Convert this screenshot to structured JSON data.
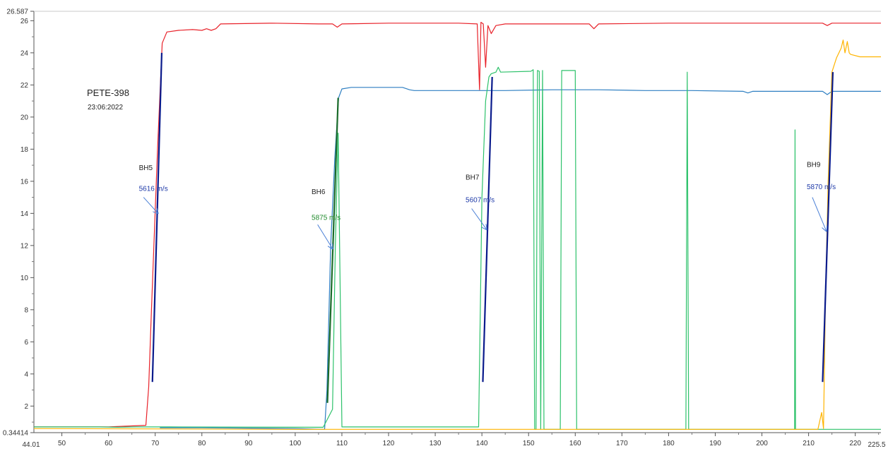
{
  "chart_data": {
    "type": "line",
    "title": "PETE-398",
    "subtitle": "23:06:2022",
    "xlim": [
      44.01,
      225.5
    ],
    "ylim": [
      0.34414,
      26.587
    ],
    "xticks": [
      50,
      60,
      70,
      80,
      90,
      100,
      110,
      120,
      130,
      140,
      150,
      160,
      170,
      180,
      190,
      200,
      210,
      220
    ],
    "x_edge_labels": [
      "44.01",
      "225.5"
    ],
    "yticks": [
      2,
      4,
      6,
      8,
      10,
      12,
      14,
      16,
      18,
      20,
      22,
      24,
      26
    ],
    "y_edge_labels": [
      "0.34414",
      "26.587"
    ],
    "grid": false,
    "series": [
      {
        "color": "#e8222a",
        "points": [
          [
            44.01,
            0.7
          ],
          [
            60,
            0.7
          ],
          [
            68,
            0.8
          ],
          [
            68.6,
            3.2
          ],
          [
            69.2,
            8
          ],
          [
            70.5,
            18
          ],
          [
            71.5,
            24.6
          ],
          [
            72.5,
            25.3
          ],
          [
            75,
            25.4
          ],
          [
            78,
            25.45
          ],
          [
            80,
            25.4
          ],
          [
            81,
            25.5
          ],
          [
            82,
            25.4
          ],
          [
            83,
            25.5
          ],
          [
            84,
            25.8
          ],
          [
            95,
            25.85
          ],
          [
            105,
            25.8
          ],
          [
            108,
            25.8
          ],
          [
            109,
            25.6
          ],
          [
            110,
            25.8
          ],
          [
            120,
            25.85
          ],
          [
            135,
            25.85
          ],
          [
            139,
            25.8
          ],
          [
            139.5,
            21.7
          ],
          [
            139.8,
            25.9
          ],
          [
            140.3,
            25.8
          ],
          [
            140.8,
            23.1
          ],
          [
            141.3,
            25.7
          ],
          [
            142,
            25.2
          ],
          [
            143,
            25.7
          ],
          [
            145,
            25.8
          ],
          [
            160,
            25.8
          ],
          [
            163,
            25.8
          ],
          [
            164,
            25.5
          ],
          [
            165,
            25.8
          ],
          [
            180,
            25.85
          ],
          [
            200,
            25.85
          ],
          [
            213,
            25.85
          ],
          [
            214,
            25.7
          ],
          [
            215,
            25.85
          ],
          [
            225.5,
            25.85
          ]
        ]
      },
      {
        "color": "#2e7fc2",
        "points": [
          [
            71,
            0.65
          ],
          [
            80,
            0.65
          ],
          [
            100,
            0.6
          ],
          [
            106.3,
            0.55
          ],
          [
            106.8,
            3
          ],
          [
            107.6,
            12
          ],
          [
            108.5,
            17.5
          ],
          [
            109.3,
            21.2
          ],
          [
            110,
            21.75
          ],
          [
            112,
            21.85
          ],
          [
            118,
            21.85
          ],
          [
            123,
            21.85
          ],
          [
            124.5,
            21.7
          ],
          [
            125.5,
            21.65
          ],
          [
            135,
            21.65
          ],
          [
            145,
            21.65
          ],
          [
            155,
            21.7
          ],
          [
            165,
            21.7
          ],
          [
            175,
            21.65
          ],
          [
            185,
            21.65
          ],
          [
            196,
            21.6
          ],
          [
            197,
            21.5
          ],
          [
            198,
            21.6
          ],
          [
            213,
            21.6
          ],
          [
            214,
            21.4
          ],
          [
            215,
            21.6
          ],
          [
            225.5,
            21.6
          ]
        ]
      },
      {
        "color": "#2ec26b",
        "points": [
          [
            44.01,
            0.7
          ],
          [
            50,
            0.7
          ],
          [
            58,
            0.7
          ],
          [
            62,
            0.68
          ],
          [
            66,
            0.7
          ],
          [
            68,
            0.7
          ],
          [
            73,
            0.7
          ],
          [
            106,
            0.68
          ],
          [
            108,
            1.8
          ],
          [
            108.6,
            12
          ],
          [
            109.2,
            19
          ],
          [
            110,
            0.7
          ],
          [
            139.3,
            0.7
          ],
          [
            140,
            15
          ],
          [
            140.8,
            21
          ],
          [
            141.5,
            22.5
          ],
          [
            142,
            22.7
          ],
          [
            143,
            22.8
          ],
          [
            143.5,
            23.1
          ],
          [
            144,
            22.8
          ],
          [
            150.5,
            22.85
          ],
          [
            151,
            22.95
          ],
          [
            151.3,
            0.55
          ],
          [
            151.6,
            0.55
          ],
          [
            151.9,
            22.9
          ],
          [
            152.3,
            22.85
          ],
          [
            152.6,
            0.55
          ],
          [
            153,
            22.9
          ],
          [
            153.3,
            0.55
          ],
          [
            156.8,
            0.55
          ],
          [
            157.1,
            22.9
          ],
          [
            160,
            22.9
          ],
          [
            160.3,
            0.55
          ],
          [
            183.7,
            0.55
          ],
          [
            184,
            22.8
          ],
          [
            184.3,
            0.55
          ],
          [
            207,
            0.55
          ],
          [
            207.1,
            19.2
          ],
          [
            207.2,
            0.55
          ],
          [
            225.5,
            0.55
          ]
        ]
      },
      {
        "color": "#ffb400",
        "points": [
          [
            44.01,
            0.6
          ],
          [
            100,
            0.55
          ],
          [
            140,
            0.55
          ],
          [
            212,
            0.55
          ],
          [
            212.8,
            1.6
          ],
          [
            213.2,
            0.6
          ],
          [
            213.6,
            8.5
          ],
          [
            214.2,
            16
          ],
          [
            215,
            22.8
          ],
          [
            216,
            23.7
          ],
          [
            217,
            24.3
          ],
          [
            217.4,
            24.8
          ],
          [
            217.8,
            24
          ],
          [
            218.3,
            24.7
          ],
          [
            218.7,
            24
          ],
          [
            219,
            23.9
          ],
          [
            221,
            23.75
          ],
          [
            225.5,
            23.75
          ]
        ]
      }
    ],
    "fit_lines": [
      {
        "color": "#0a1b8c",
        "points": [
          [
            69.4,
            3.5
          ],
          [
            71.4,
            24.0
          ]
        ]
      },
      {
        "color": "#1a6b2a",
        "points": [
          [
            106.9,
            2.2
          ],
          [
            109.2,
            21.2
          ]
        ]
      },
      {
        "color": "#0a1b8c",
        "points": [
          [
            140.2,
            3.5
          ],
          [
            142.2,
            22.5
          ]
        ]
      },
      {
        "color": "#0a1b8c",
        "points": [
          [
            213.0,
            3.5
          ],
          [
            215.2,
            22.8
          ]
        ]
      }
    ],
    "annotations": [
      {
        "label": "BH5",
        "speed": "5616 m/s",
        "speed_color": "#1e3aa8",
        "label_at": [
          66.5,
          16.7
        ],
        "speed_at": [
          66.5,
          15.4
        ],
        "arrow_from": [
          67.5,
          15.0
        ],
        "arrow_to": [
          70.6,
          14.0
        ]
      },
      {
        "label": "BH6",
        "speed": "5875 m/s",
        "speed_color": "#1f8a2b",
        "label_at": [
          103.5,
          15.2
        ],
        "speed_at": [
          103.5,
          13.6
        ],
        "arrow_from": [
          104.8,
          13.3
        ],
        "arrow_to": [
          108.0,
          11.8
        ]
      },
      {
        "label": "BH7",
        "speed": "5607 m/s",
        "speed_color": "#1e3aa8",
        "label_at": [
          136.5,
          16.1
        ],
        "speed_at": [
          136.5,
          14.7
        ],
        "arrow_from": [
          137.8,
          14.3
        ],
        "arrow_to": [
          141.0,
          13.0
        ]
      },
      {
        "label": "BH9",
        "speed": "5870 m/s",
        "speed_color": "#1e3aa8",
        "label_at": [
          209.6,
          16.9
        ],
        "speed_at": [
          209.6,
          15.5
        ],
        "arrow_from": [
          210.8,
          15.0
        ],
        "arrow_to": [
          213.8,
          12.9
        ]
      }
    ]
  }
}
